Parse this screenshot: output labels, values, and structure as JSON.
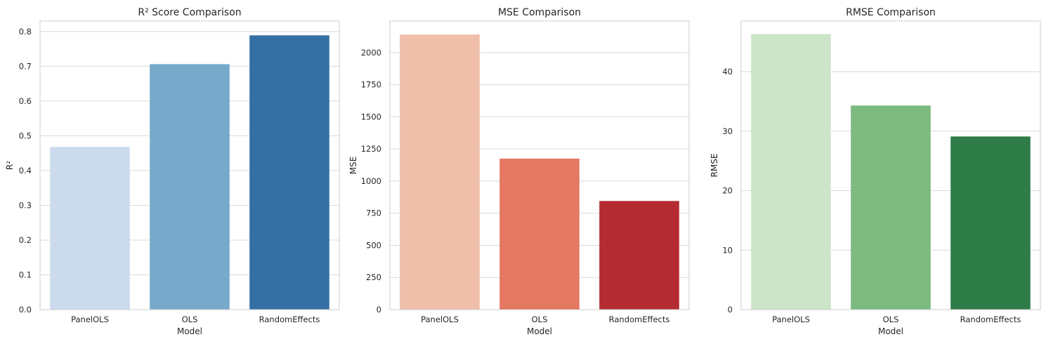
{
  "chart_data": [
    {
      "type": "bar",
      "title": "R² Score Comparison",
      "xlabel": "Model",
      "ylabel": "R²",
      "categories": [
        "PanelOLS",
        "OLS",
        "RandomEffects"
      ],
      "values": [
        0.468,
        0.706,
        0.789
      ],
      "ylim": [
        0,
        0.83
      ],
      "yticks": [
        0.0,
        0.1,
        0.2,
        0.3,
        0.4,
        0.5,
        0.6,
        0.7,
        0.8
      ],
      "ytick_labels": [
        "0.0",
        "0.1",
        "0.2",
        "0.3",
        "0.4",
        "0.5",
        "0.6",
        "0.7",
        "0.8"
      ],
      "colors": [
        "#cbdbeb",
        "#77a9ca",
        "#3470a3"
      ],
      "grid": true
    },
    {
      "type": "bar",
      "title": "MSE Comparison",
      "xlabel": "Model",
      "ylabel": "MSE",
      "categories": [
        "PanelOLS",
        "OLS",
        "RandomEffects"
      ],
      "values": [
        2140,
        1175,
        845
      ],
      "ylim": [
        0,
        2245
      ],
      "yticks": [
        0,
        250,
        500,
        750,
        1000,
        1250,
        1500,
        1750,
        2000
      ],
      "ytick_labels": [
        "0",
        "250",
        "500",
        "750",
        "1000",
        "1250",
        "1500",
        "1750",
        "2000"
      ],
      "colors": [
        "#efbfaa",
        "#e47861",
        "#b42b31"
      ],
      "grid": true
    },
    {
      "type": "bar",
      "title": "RMSE Comparison",
      "xlabel": "Model",
      "ylabel": "RMSE",
      "categories": [
        "PanelOLS",
        "OLS",
        "RandomEffects"
      ],
      "values": [
        46.3,
        34.3,
        29.1
      ],
      "ylim": [
        0,
        48.5
      ],
      "yticks": [
        0,
        10,
        20,
        30,
        40
      ],
      "ytick_labels": [
        "0",
        "10",
        "20",
        "30",
        "40"
      ],
      "colors": [
        "#cce5c8",
        "#7dba7f",
        "#2e7c48"
      ],
      "grid": true
    }
  ]
}
